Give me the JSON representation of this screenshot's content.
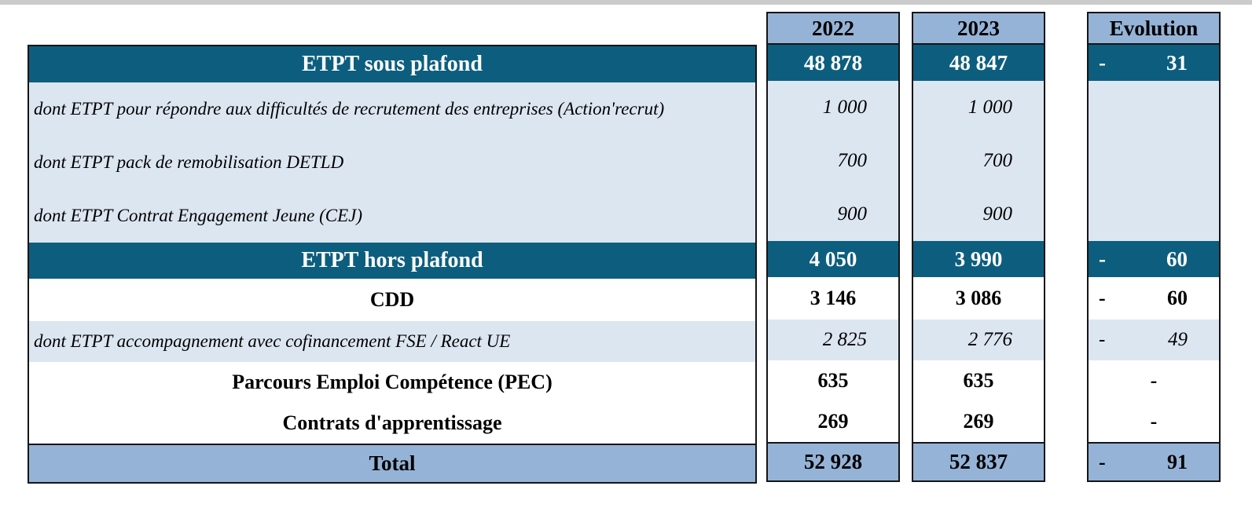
{
  "table": {
    "column_headers": {
      "y2022": "2022",
      "y2023": "2023",
      "evolution": "Evolution"
    },
    "colors": {
      "section_bg": "#0d5e7e",
      "detail_bg": "#dce6f1",
      "header_total_bg": "#95b3d7",
      "border": "#151515"
    },
    "rows": [
      {
        "id": "etpt-sous-plafond",
        "style": "section",
        "label": "ETPT sous plafond",
        "v2022": "48 878",
        "v2023": "48 847",
        "evo_sign": "-",
        "evo_value": "31"
      },
      {
        "id": "action-recrut",
        "style": "detail",
        "label": "dont ETPT pour répondre aux difficultés de recrutement des entreprises (Action'recrut)",
        "v2022": "1 000",
        "v2023": "1 000",
        "evo_sign": "",
        "evo_value": ""
      },
      {
        "id": "detld",
        "style": "detail",
        "label": "dont ETPT pack de remobilisation DETLD",
        "v2022": "700",
        "v2023": "700",
        "evo_sign": "",
        "evo_value": ""
      },
      {
        "id": "cej",
        "style": "detail",
        "label": "dont ETPT Contrat Engagement Jeune (CEJ)",
        "v2022": "900",
        "v2023": "900",
        "evo_sign": "",
        "evo_value": ""
      },
      {
        "id": "etpt-hors-plafond",
        "style": "section",
        "label": "ETPT hors plafond",
        "v2022": "4 050",
        "v2023": "3 990",
        "evo_sign": "-",
        "evo_value": "60"
      },
      {
        "id": "cdd",
        "style": "plain",
        "label": "CDD",
        "v2022": "3 146",
        "v2023": "3 086",
        "evo_sign": "-",
        "evo_value": "60"
      },
      {
        "id": "fse-react-ue",
        "style": "detail",
        "label": "dont ETPT accompagnement avec cofinancement FSE / React UE",
        "v2022": "2 825",
        "v2023": "2 776",
        "evo_sign": "-",
        "evo_value": "49"
      },
      {
        "id": "pec",
        "style": "plain",
        "label": "Parcours Emploi Compétence (PEC)",
        "v2022": "635",
        "v2023": "635",
        "evo_sign": "",
        "evo_value": "-"
      },
      {
        "id": "apprentissage",
        "style": "plain",
        "label": "Contrats d'apprentissage",
        "v2022": "269",
        "v2023": "269",
        "evo_sign": "",
        "evo_value": "-"
      },
      {
        "id": "total",
        "style": "total",
        "label": "Total",
        "v2022": "52 928",
        "v2023": "52 837",
        "evo_sign": "-",
        "evo_value": "91"
      }
    ]
  }
}
